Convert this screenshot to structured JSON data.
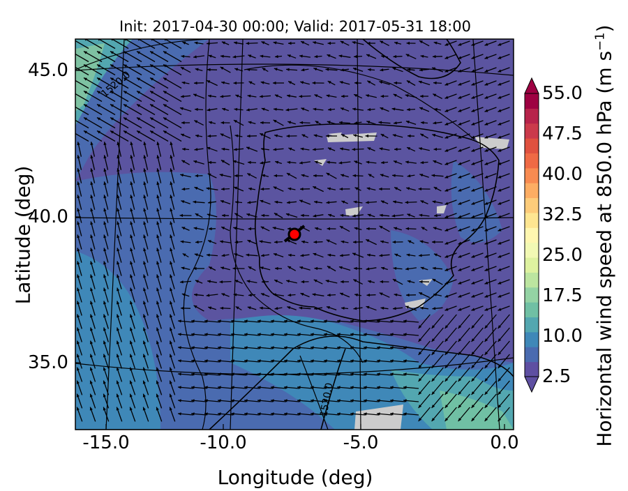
{
  "title": "Init: 2017-04-30 00:00; Valid: 2017-05-31 18:00",
  "xlabel": "Longitude (deg)",
  "ylabel": "Latitude (deg)",
  "colorbar": {
    "label": "Horizontal wind speed at 850.0 hPa (m s$^{-1}$)",
    "label_text": "Horizontal wind speed at 850.0 hPa (m s",
    "label_sup": "−1",
    "label_end": ")",
    "ticks": [
      "2.5",
      "10.0",
      "17.5",
      "25.0",
      "32.5",
      "40.0",
      "47.5",
      "55.0"
    ],
    "tick_values": [
      2.5,
      10.0,
      17.5,
      25.0,
      32.5,
      40.0,
      47.5,
      55.0
    ],
    "colors": [
      "#5e4fa2",
      "#4a6bb0",
      "#3f88b8",
      "#53a7b0",
      "#70c0a4",
      "#94d3a4",
      "#bce5a0",
      "#def2a0",
      "#f2f9b4",
      "#fff7b0",
      "#fee691",
      "#fdcc7a",
      "#fdad63",
      "#f88b51",
      "#ef6a45",
      "#e0513f",
      "#cb3a4b",
      "#b7234b",
      "#9e0142"
    ]
  },
  "chart_data": {
    "type": "map",
    "x_axis": {
      "label": "Longitude (deg)",
      "ticks": [
        -15.0,
        -10.0,
        -5.0,
        0.0
      ],
      "tick_labels": [
        "-15.0",
        "-10.0",
        "-5.0",
        "0.0"
      ],
      "range": [
        -16,
        0.2
      ]
    },
    "y_axis": {
      "label": "Latitude (deg)",
      "ticks": [
        35.0,
        40.0,
        45.0
      ],
      "tick_labels": [
        "35.0",
        "40.0",
        "45.0"
      ],
      "range": [
        32.8,
        46.2
      ]
    },
    "field": "Horizontal wind speed at 850.0 hPa",
    "units": "m s^-1",
    "colorbar_range": [
      2.5,
      55.0
    ],
    "contour_labels": [
      "1520.0",
      "1520.0"
    ],
    "marker": {
      "lon": -7.7,
      "lat": 39.4
    }
  }
}
